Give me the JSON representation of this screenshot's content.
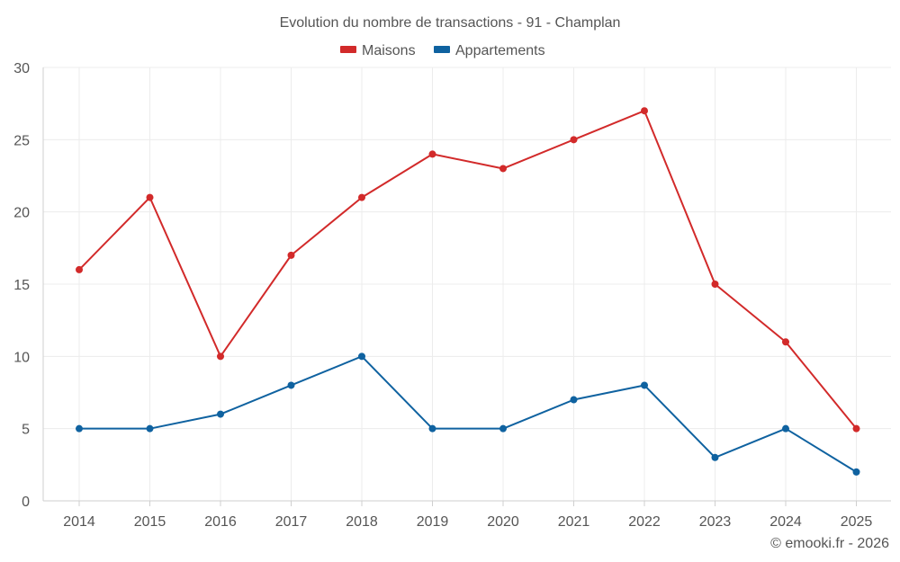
{
  "chart_data": {
    "type": "line",
    "title": "Evolution du nombre de transactions - 91 - Champlan",
    "categories": [
      "2014",
      "2015",
      "2016",
      "2017",
      "2018",
      "2019",
      "2020",
      "2021",
      "2022",
      "2023",
      "2024",
      "2025"
    ],
    "series": [
      {
        "name": "Maisons",
        "color": "#d22a2a",
        "values": [
          16,
          21,
          10,
          17,
          21,
          24,
          23,
          25,
          27,
          15,
          11,
          5
        ]
      },
      {
        "name": "Appartements",
        "color": "#0f62a0",
        "values": [
          5,
          5,
          6,
          8,
          10,
          5,
          5,
          7,
          8,
          3,
          5,
          2
        ]
      }
    ],
    "xlabel": "",
    "ylabel": "",
    "ylim": [
      0,
      30
    ],
    "yticks": [
      0,
      5,
      10,
      15,
      20,
      25,
      30
    ],
    "grid": true,
    "legend_position": "top-center"
  },
  "credit": "© emooki.fr - 2026"
}
